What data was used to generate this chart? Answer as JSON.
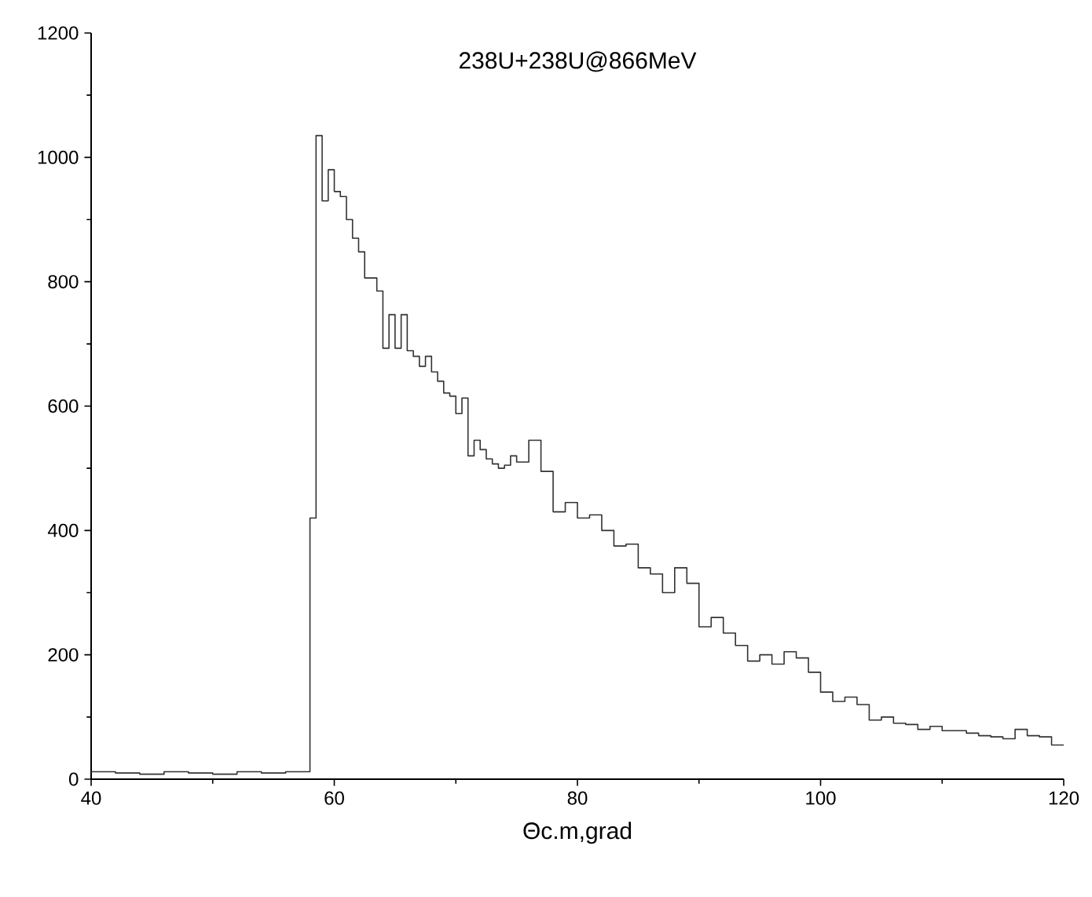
{
  "chart_data": {
    "type": "histogram",
    "title": "238U+238U@866MeV",
    "xlabel": "Θc.m,grad",
    "bins": [
      40,
      42,
      44,
      46,
      48,
      50,
      52,
      54,
      56,
      58,
      58.5,
      59,
      59.5,
      60,
      60.5,
      61,
      61.5,
      62,
      62.5,
      63,
      63.5,
      64,
      64.5,
      65,
      65.5,
      66,
      66.5,
      67,
      67.5,
      68,
      68.5,
      69,
      69.5,
      70,
      70.5,
      71,
      71.5,
      72,
      72.5,
      73,
      73.5,
      74,
      74.5,
      75,
      76,
      77,
      78,
      79,
      80,
      81,
      82,
      83,
      84,
      85,
      86,
      87,
      88,
      89,
      90,
      91,
      92,
      93,
      94,
      95,
      96,
      97,
      98,
      99,
      100,
      101,
      102,
      103,
      104,
      105,
      106,
      107,
      108,
      109,
      110,
      111,
      112,
      113,
      114,
      115,
      116,
      117,
      118,
      119,
      120
    ],
    "values": [
      12,
      10,
      8,
      12,
      10,
      8,
      12,
      10,
      12,
      420,
      1035,
      930,
      980,
      945,
      937,
      900,
      870,
      848,
      806,
      806,
      785,
      693,
      747,
      693,
      747,
      689,
      680,
      664,
      680,
      655,
      640,
      621,
      616,
      588,
      613,
      520,
      545,
      530,
      515,
      507,
      500,
      505,
      520,
      510,
      545,
      495,
      430,
      445,
      420,
      425,
      400,
      375,
      378,
      340,
      330,
      300,
      340,
      315,
      245,
      260,
      235,
      215,
      190,
      200,
      185,
      205,
      195,
      172,
      140,
      125,
      132,
      120,
      95,
      100,
      90,
      88,
      80,
      85,
      78,
      78,
      74,
      70,
      68,
      65,
      80,
      70,
      68,
      55
    ],
    "color": "#333333",
    "xlim": [
      40,
      120
    ],
    "ylim": [
      0,
      1200
    ],
    "xticks": [
      40,
      60,
      80,
      100,
      120
    ],
    "yticks": [
      0,
      200,
      400,
      600,
      800,
      1000,
      1200
    ]
  }
}
